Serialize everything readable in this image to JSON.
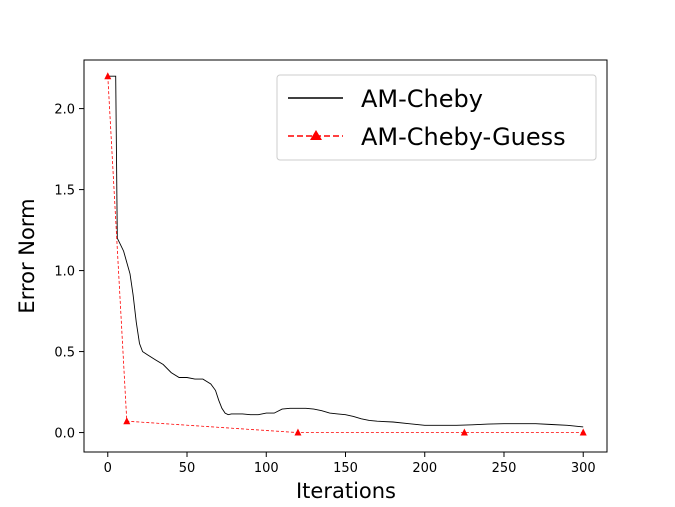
{
  "chart_data": {
    "type": "line",
    "xlabel": "Iterations",
    "ylabel": "Error Norm",
    "xlim": [
      -15,
      315
    ],
    "ylim": [
      -0.12,
      2.3
    ],
    "xticks": [
      0,
      50,
      100,
      150,
      200,
      250,
      300
    ],
    "yticks": [
      0.0,
      0.5,
      1.0,
      1.5,
      2.0
    ],
    "xtick_labels": [
      "0",
      "50",
      "100",
      "150",
      "200",
      "250",
      "300"
    ],
    "ytick_labels": [
      "0.0",
      "0.5",
      "1.0",
      "1.5",
      "2.0"
    ],
    "grid": false,
    "legend_position": "top-right",
    "series": [
      {
        "name": "AM-Cheby",
        "color": "#000000",
        "line_style": "solid",
        "marker": "none",
        "x": [
          0,
          2,
          3,
          3.5,
          4,
          4.5,
          5,
          6,
          8,
          10,
          12,
          14,
          16,
          18,
          20,
          22,
          25,
          30,
          35,
          40,
          45,
          50,
          55,
          60,
          65,
          68,
          70,
          72,
          74,
          76,
          78,
          80,
          85,
          90,
          95,
          100,
          105,
          110,
          115,
          120,
          125,
          130,
          135,
          140,
          145,
          150,
          155,
          160,
          165,
          170,
          180,
          190,
          200,
          210,
          220,
          230,
          240,
          250,
          260,
          270,
          280,
          290,
          300
        ],
        "y": [
          2.2,
          2.2,
          2.2,
          2.2,
          2.2,
          2.2,
          2.2,
          1.2,
          1.16,
          1.12,
          1.05,
          0.98,
          0.85,
          0.68,
          0.55,
          0.5,
          0.48,
          0.45,
          0.42,
          0.37,
          0.34,
          0.34,
          0.33,
          0.33,
          0.3,
          0.26,
          0.2,
          0.15,
          0.12,
          0.11,
          0.115,
          0.115,
          0.115,
          0.11,
          0.11,
          0.12,
          0.12,
          0.145,
          0.15,
          0.15,
          0.15,
          0.145,
          0.135,
          0.12,
          0.115,
          0.11,
          0.1,
          0.085,
          0.075,
          0.07,
          0.065,
          0.055,
          0.045,
          0.045,
          0.045,
          0.048,
          0.052,
          0.055,
          0.055,
          0.055,
          0.05,
          0.045,
          0.035
        ]
      },
      {
        "name": "AM-Cheby-Guess",
        "color": "#ff0000",
        "line_style": "dashed",
        "marker": "triangle",
        "x": [
          0,
          12,
          120,
          225,
          300
        ],
        "y": [
          2.2,
          0.07,
          0.0,
          0.0,
          0.0
        ]
      }
    ]
  }
}
